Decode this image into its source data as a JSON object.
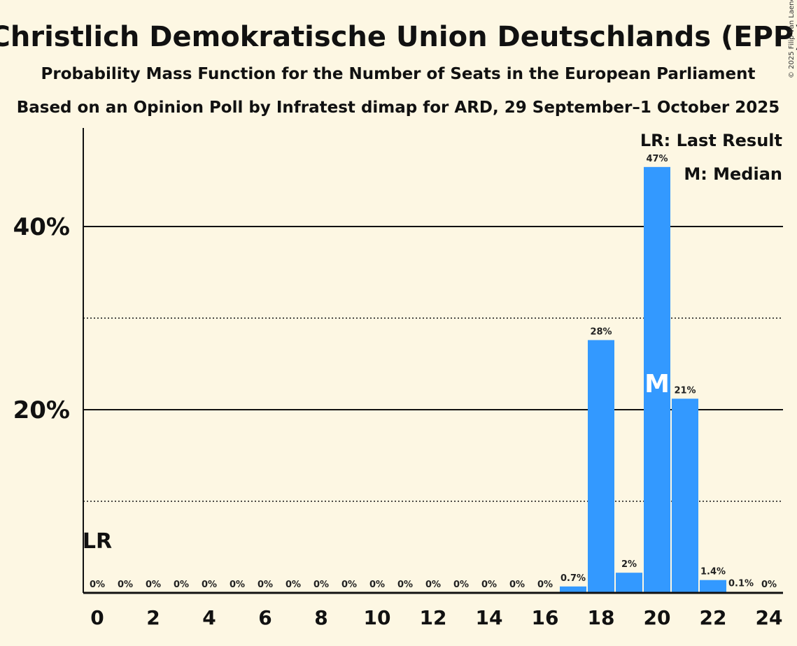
{
  "chart_data": {
    "type": "bar",
    "title": "Christlich Demokratische Union Deutschlands (EPP)",
    "subtitle": "Probability Mass Function for the Number of Seats in the European Parliament",
    "subtitle2": "Based on an Opinion Poll by Infratest dimap for ARD, 29 September–1 October 2025",
    "copyright": "© 2025 Filip van Laenen",
    "x": [
      0,
      1,
      2,
      3,
      4,
      5,
      6,
      7,
      8,
      9,
      10,
      11,
      12,
      13,
      14,
      15,
      16,
      17,
      18,
      19,
      20,
      21,
      22,
      23,
      24
    ],
    "values": [
      0,
      0,
      0,
      0,
      0,
      0,
      0,
      0,
      0,
      0,
      0,
      0,
      0,
      0,
      0,
      0,
      0,
      0.7,
      27.6,
      2.2,
      46.5,
      21.2,
      1.4,
      0.1,
      0
    ],
    "labels": [
      "0%",
      "0%",
      "0%",
      "0%",
      "0%",
      "0%",
      "0%",
      "0%",
      "0%",
      "0%",
      "0%",
      "0%",
      "0%",
      "0%",
      "0%",
      "0%",
      "0%",
      "0.7%",
      "28%",
      "2%",
      "47%",
      "21%",
      "1.4%",
      "0.1%",
      "0%"
    ],
    "xticks": [
      "0",
      "2",
      "4",
      "6",
      "8",
      "10",
      "12",
      "14",
      "16",
      "18",
      "20",
      "22",
      "24"
    ],
    "yticks": [
      {
        "value": 20,
        "label": "20%"
      },
      {
        "value": 40,
        "label": "40%"
      }
    ],
    "ydotted": [
      10,
      30
    ],
    "ylim": [
      0,
      50
    ],
    "bar_color": "#3399ff",
    "last_result": {
      "seat": 0,
      "label": "LR"
    },
    "median": {
      "seat": 20,
      "label": "M"
    },
    "legend": [
      "LR: Last Result",
      "M: Median"
    ],
    "legend_placement": "top-right"
  }
}
